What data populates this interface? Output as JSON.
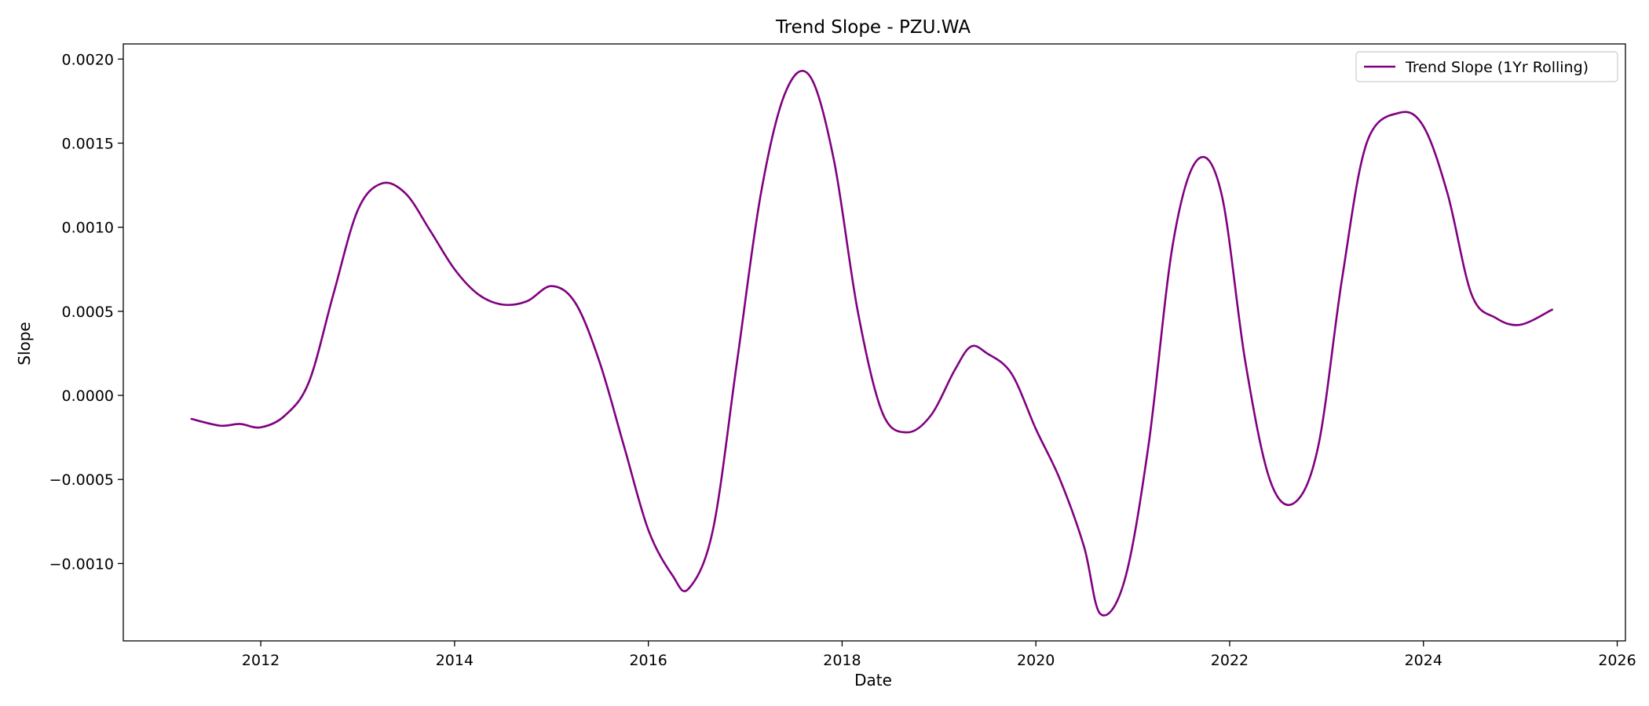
{
  "chart_data": {
    "type": "line",
    "title": "Trend Slope - PZU.WA",
    "xlabel": "Date",
    "ylabel": "Slope",
    "xlim": [
      "2010-08-01",
      "2026-02-01"
    ],
    "ylim": [
      -0.00146,
      0.00209
    ],
    "x_ticks": [
      2012,
      2014,
      2016,
      2018,
      2020,
      2022,
      2024,
      2026
    ],
    "y_ticks": [
      -0.001,
      -0.0005,
      0.0,
      0.0005,
      0.001,
      0.0015,
      0.002
    ],
    "y_tick_labels": [
      "−0.0010",
      "−0.0005",
      "0.0000",
      "0.0005",
      "0.0010",
      "0.0015",
      "0.0020"
    ],
    "grid": false,
    "legend": {
      "position": "top-right",
      "entries": [
        "Trend Slope (1Yr Rolling)"
      ]
    },
    "series": [
      {
        "name": "Trend Slope (1Yr Rolling)",
        "color": "#800080",
        "x": [
          "2011-04-15",
          "2011-08-01",
          "2011-10-15",
          "2012-01-01",
          "2012-04-01",
          "2012-07-01",
          "2012-10-01",
          "2013-01-01",
          "2013-04-01",
          "2013-07-01",
          "2013-10-01",
          "2014-01-01",
          "2014-04-01",
          "2014-07-01",
          "2014-10-01",
          "2015-01-01",
          "2015-04-01",
          "2015-07-01",
          "2015-10-01",
          "2016-01-01",
          "2016-04-01",
          "2016-06-01",
          "2016-09-01",
          "2016-12-01",
          "2017-03-01",
          "2017-06-01",
          "2017-09-01",
          "2017-12-01",
          "2018-03-01",
          "2018-06-01",
          "2018-09-01",
          "2018-12-01",
          "2019-03-01",
          "2019-05-01",
          "2019-07-01",
          "2019-10-01",
          "2020-01-01",
          "2020-04-01",
          "2020-07-01",
          "2020-09-01",
          "2020-12-01",
          "2021-03-01",
          "2021-06-01",
          "2021-09-01",
          "2021-12-01",
          "2022-03-01",
          "2022-06-01",
          "2022-09-01",
          "2022-12-01",
          "2023-03-01",
          "2023-06-01",
          "2023-10-01",
          "2024-01-01",
          "2024-04-01",
          "2024-07-01",
          "2024-10-01",
          "2025-01-01",
          "2025-05-01"
        ],
        "y": [
          -0.00014,
          -0.00018,
          -0.00017,
          -0.00019,
          -0.00012,
          8e-05,
          0.0006,
          0.0011,
          0.00126,
          0.0012,
          0.00098,
          0.00075,
          0.0006,
          0.00054,
          0.00056,
          0.00065,
          0.00055,
          0.0002,
          -0.0003,
          -0.0008,
          -0.00107,
          -0.00115,
          -0.0008,
          0.0002,
          0.0012,
          0.0018,
          0.0019,
          0.0014,
          0.0005,
          -0.0001,
          -0.00022,
          -0.00012,
          0.00015,
          0.00029,
          0.00025,
          0.00013,
          -0.0002,
          -0.0005,
          -0.0009,
          -0.0013,
          -0.0011,
          -0.0003,
          0.0009,
          0.0014,
          0.0012,
          0.0002,
          -0.0005,
          -0.00064,
          -0.0003,
          0.0007,
          0.0015,
          0.00168,
          0.0016,
          0.0012,
          0.0006,
          0.00046,
          0.00042,
          0.00051
        ]
      }
    ]
  }
}
